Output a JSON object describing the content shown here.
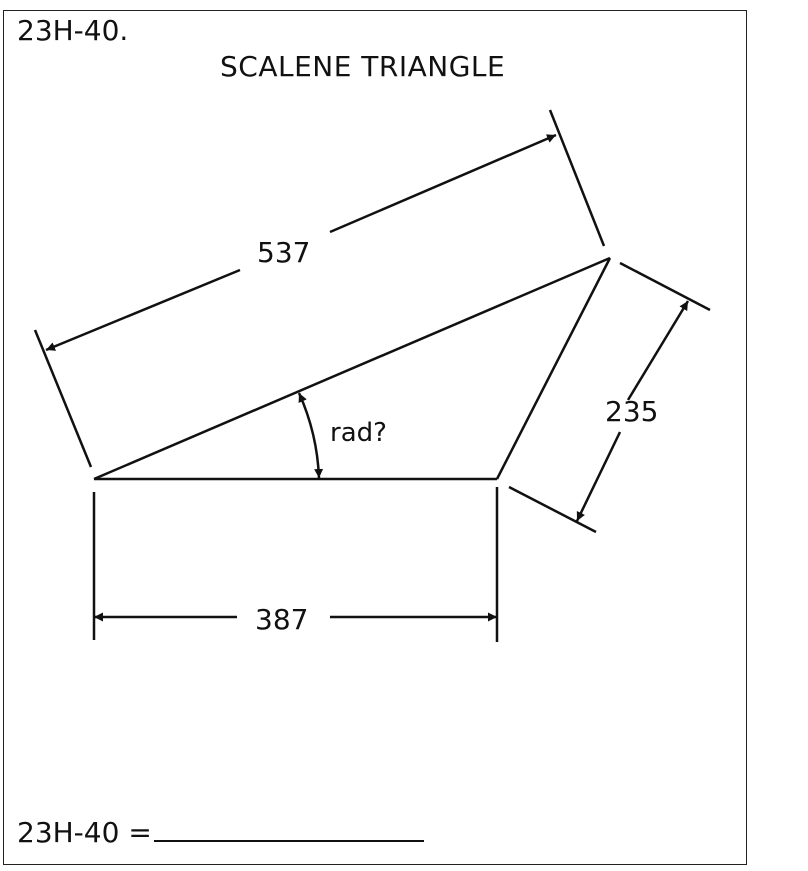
{
  "problem": {
    "id": "23H-40.",
    "title": "SCALENE TRIANGLE"
  },
  "dimensions": {
    "top_side": "537",
    "right_side": "235",
    "base": "387",
    "angle": "rad?"
  },
  "answer": {
    "label": "23H-40 ="
  }
}
